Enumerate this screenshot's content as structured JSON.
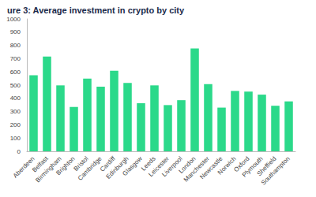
{
  "chart_data": {
    "type": "bar",
    "title": "ure 3: Average investment in crypto by city",
    "categories": [
      "Aberdeen",
      "Belfast",
      "Birmingham",
      "Brighton",
      "Bristol",
      "Cambridge",
      "Cardiff",
      "Edinburgh",
      "Glasgow",
      "Leeds",
      "Leicester",
      "Liverpool",
      "London",
      "Manchester",
      "Newcastle",
      "Norwich",
      "Oxford",
      "Plymouth",
      "Sheffield",
      "Southampton"
    ],
    "values": [
      575,
      716,
      498,
      335,
      549,
      488,
      609,
      516,
      363,
      498,
      349,
      386,
      777,
      507,
      330,
      456,
      451,
      428,
      344,
      377
    ],
    "color": "#2bd98a",
    "ylim": [
      0,
      1000
    ],
    "yticks": [
      0,
      100,
      200,
      300,
      400,
      500,
      600,
      700,
      800,
      900,
      1000
    ],
    "grid": false
  }
}
